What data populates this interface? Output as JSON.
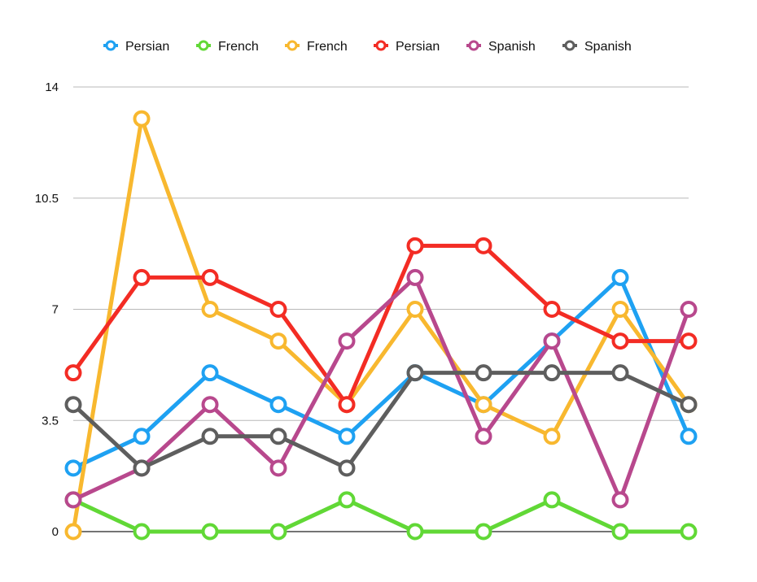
{
  "chart_data": {
    "type": "line",
    "title": "",
    "xlabel": "",
    "ylabel": "",
    "x": [
      1,
      2,
      3,
      4,
      5,
      6,
      7,
      8,
      9,
      10
    ],
    "ylim": [
      0,
      14
    ],
    "yticks": [
      0,
      3.5,
      7,
      10.5,
      14
    ],
    "ytick_labels": [
      "0",
      "3.5",
      "7",
      "10.5",
      "14"
    ],
    "grid": "horizontal",
    "legend_position": "top",
    "series": [
      {
        "name": "Persian",
        "color": "#1ea1f2",
        "values": [
          2,
          3,
          5,
          4,
          3,
          5,
          4,
          6,
          8,
          3
        ]
      },
      {
        "name": "French",
        "color": "#61d836",
        "values": [
          1,
          0,
          0,
          0,
          1,
          0,
          0,
          1,
          0,
          0
        ]
      },
      {
        "name": "French",
        "color": "#f8b82f",
        "values": [
          0,
          13,
          7,
          6,
          4,
          7,
          4,
          3,
          7,
          4
        ]
      },
      {
        "name": "Persian",
        "color": "#f32c24",
        "values": [
          5,
          8,
          8,
          7,
          4,
          9,
          9,
          7,
          6,
          6
        ]
      },
      {
        "name": "Spanish",
        "color": "#b8488d",
        "values": [
          1,
          2,
          4,
          2,
          6,
          8,
          3,
          6,
          1,
          7
        ]
      },
      {
        "name": "Spanish",
        "color": "#5e5e5e",
        "values": [
          4,
          2,
          3,
          3,
          2,
          5,
          5,
          5,
          5,
          4
        ]
      }
    ]
  }
}
